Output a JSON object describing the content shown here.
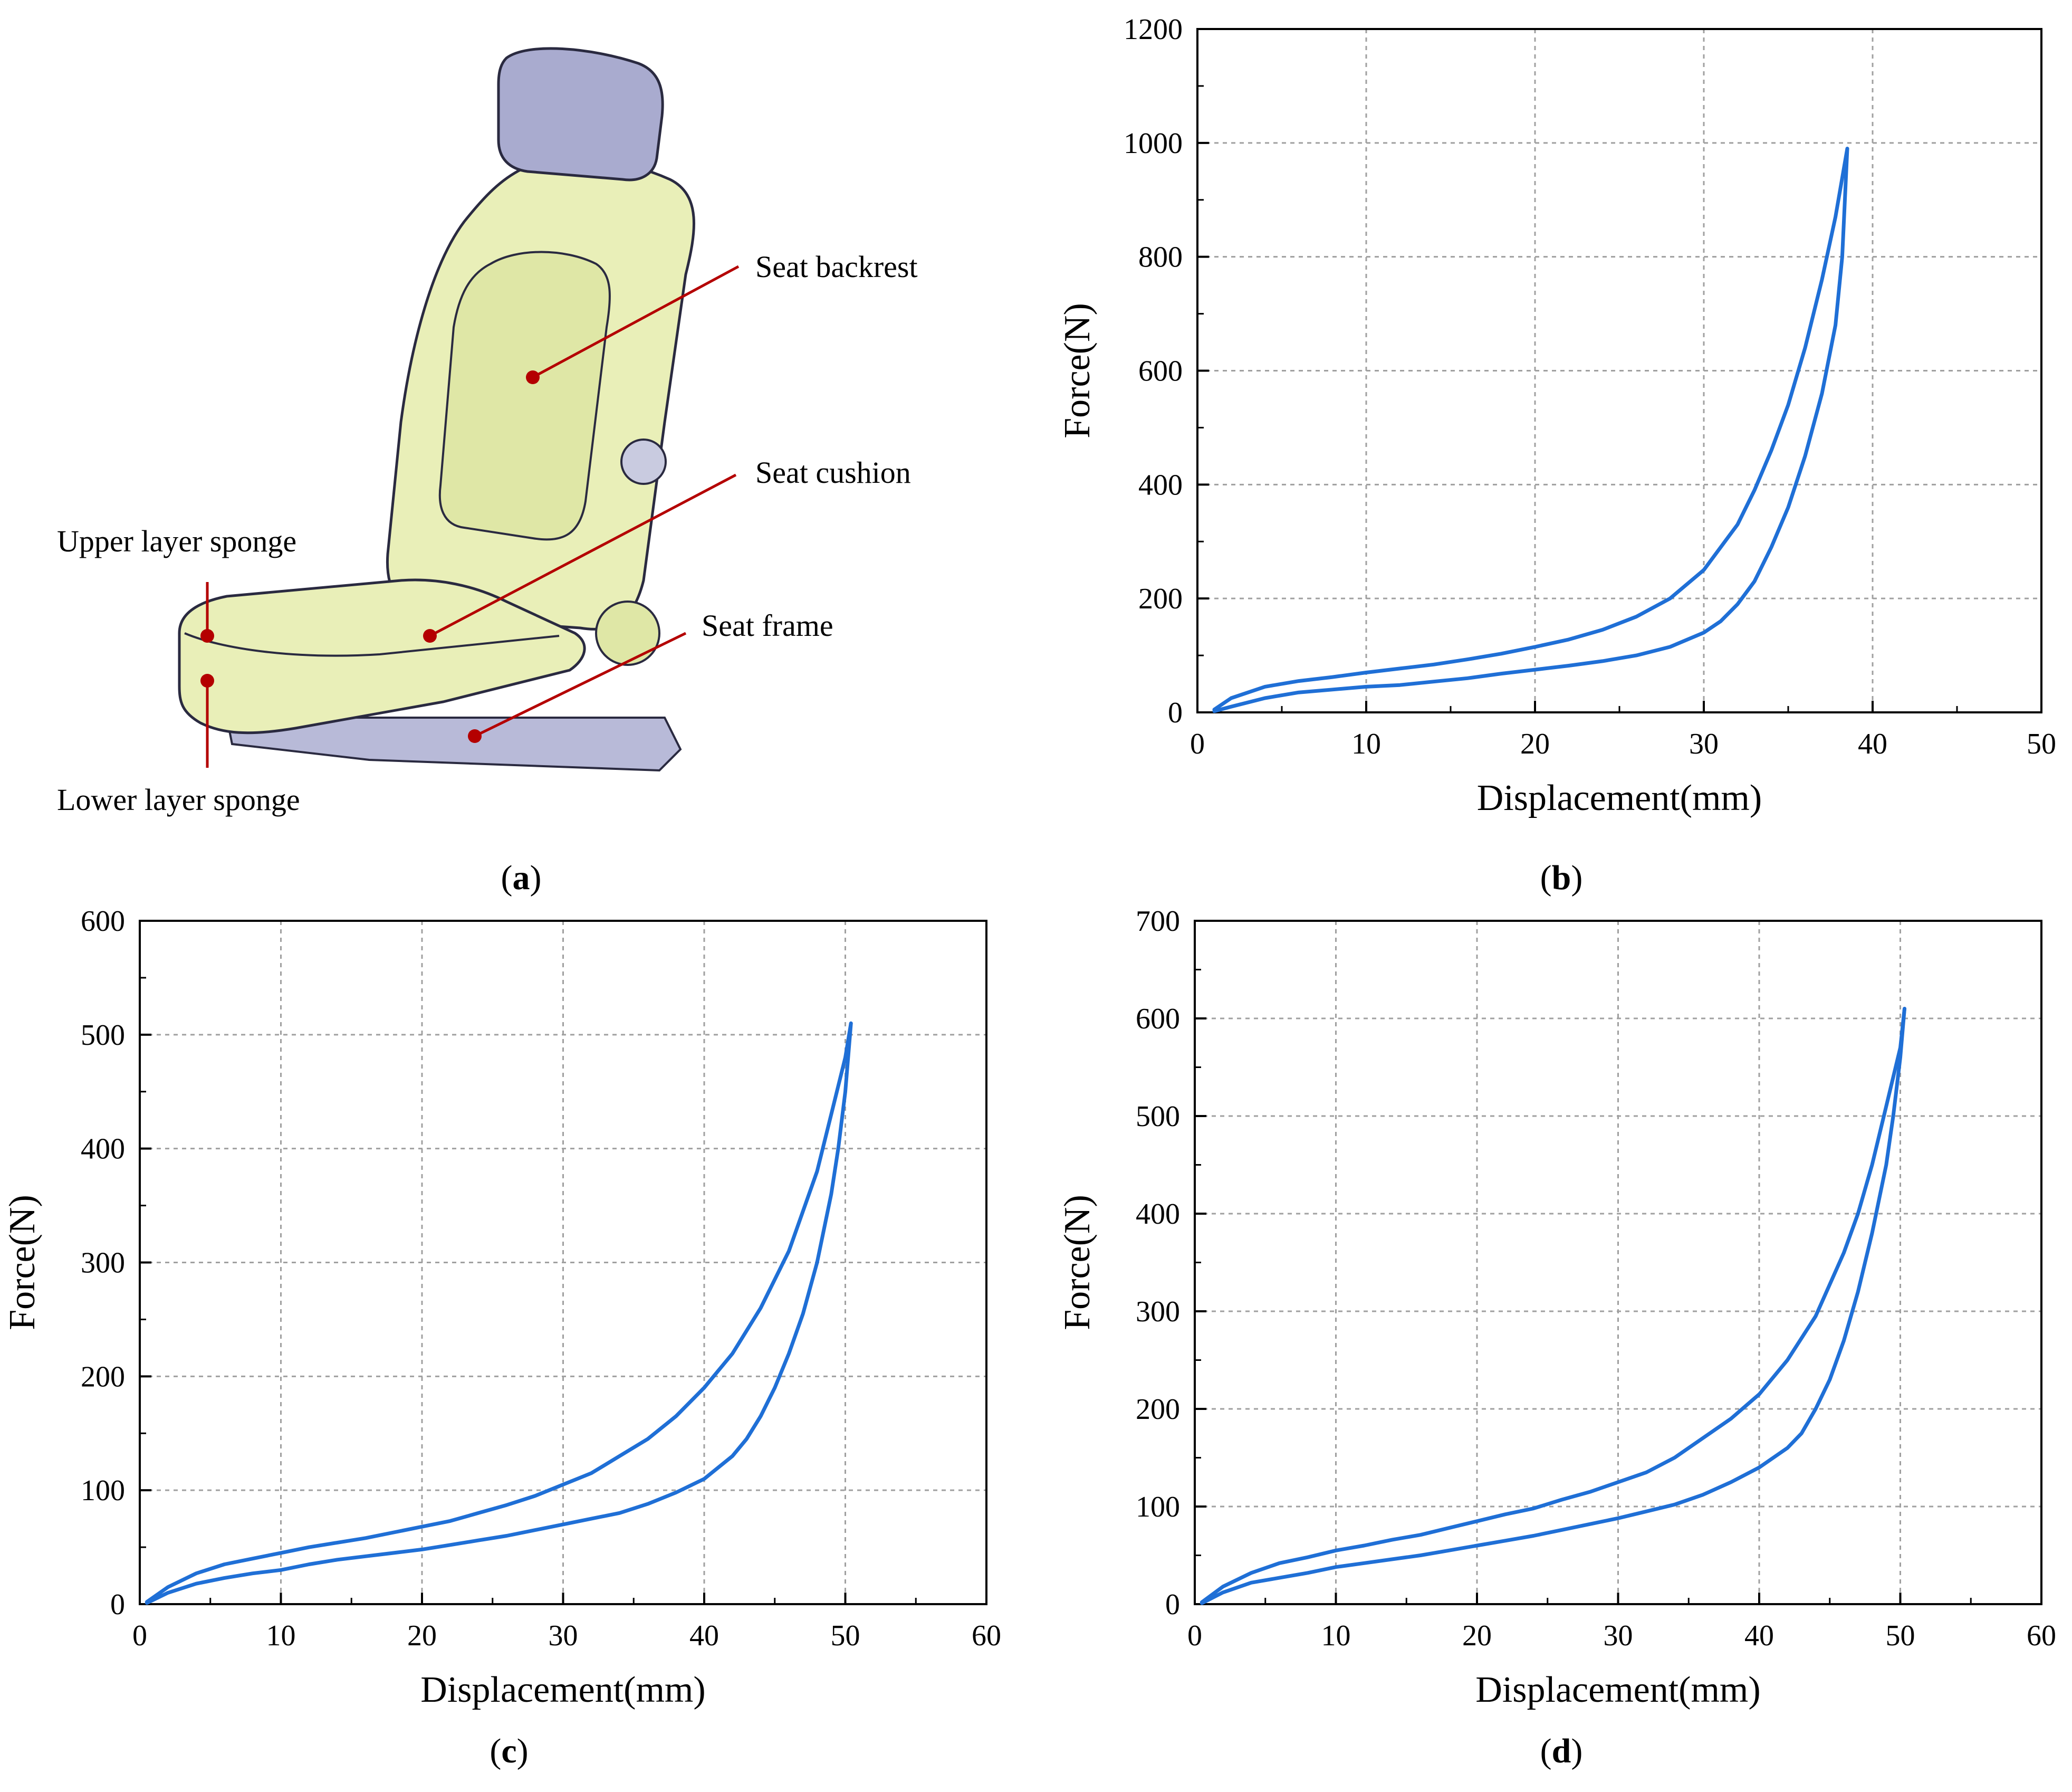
{
  "panel_a": {
    "caption_letter": "a",
    "labels": {
      "backrest": "Seat backrest",
      "cushion": "Seat cushion",
      "upper_sponge": "Upper layer sponge",
      "frame": "Seat frame",
      "lower_sponge": "Lower layer sponge"
    },
    "colors": {
      "seat": "#e9efb8",
      "headrest": "#a9abcf",
      "leader": "#b40000"
    }
  },
  "chart_data": [
    {
      "id": "b",
      "caption_letter": "b",
      "type": "line",
      "xlabel": "Displacement(mm)",
      "ylabel": "Force(N)",
      "xlim": [
        0,
        50
      ],
      "ylim": [
        0,
        1200
      ],
      "xticks": [
        0,
        10,
        20,
        30,
        40,
        50
      ],
      "yticks": [
        0,
        200,
        400,
        600,
        800,
        1000,
        1200
      ],
      "grid": true,
      "series": [
        {
          "x": [
            1,
            2,
            4,
            6,
            8,
            10,
            12,
            14,
            16,
            18,
            20,
            22,
            24,
            26,
            28,
            30,
            32,
            33,
            34,
            35,
            36,
            37,
            37.8,
            38.5
          ],
          "y": [
            5,
            25,
            45,
            55,
            62,
            70,
            77,
            84,
            93,
            103,
            115,
            128,
            145,
            168,
            200,
            250,
            330,
            390,
            460,
            540,
            640,
            760,
            870,
            990
          ]
        },
        {
          "x": [
            38.5,
            38.2,
            37.8,
            37,
            36,
            35,
            34,
            33,
            32,
            31,
            30,
            28,
            26,
            24,
            22,
            20,
            18,
            16,
            14,
            12,
            10,
            8,
            6,
            4,
            2,
            1
          ],
          "y": [
            990,
            800,
            680,
            560,
            450,
            360,
            290,
            230,
            190,
            160,
            140,
            115,
            100,
            90,
            82,
            75,
            68,
            60,
            54,
            48,
            45,
            40,
            35,
            25,
            10,
            2
          ]
        }
      ],
      "color": "#1f6fd6"
    },
    {
      "id": "c",
      "caption_letter": "c",
      "type": "line",
      "xlabel": "Displacement(mm)",
      "ylabel": "Force(N)",
      "xlim": [
        0,
        60
      ],
      "ylim": [
        0,
        600
      ],
      "xticks": [
        0,
        10,
        20,
        30,
        40,
        50,
        60
      ],
      "yticks": [
        0,
        100,
        200,
        300,
        400,
        500,
        600
      ],
      "grid": true,
      "series": [
        {
          "x": [
            0.5,
            2,
            4,
            6,
            8,
            10,
            12,
            14,
            16,
            18,
            20,
            22,
            24,
            26,
            28,
            30,
            32,
            34,
            36,
            38,
            40,
            42,
            44,
            46,
            48,
            49,
            50,
            50.4
          ],
          "y": [
            2,
            15,
            27,
            35,
            40,
            45,
            50,
            54,
            58,
            63,
            68,
            73,
            80,
            87,
            95,
            105,
            115,
            130,
            145,
            165,
            190,
            220,
            260,
            310,
            380,
            430,
            480,
            510
          ]
        },
        {
          "x": [
            50.4,
            50,
            49.5,
            49,
            48,
            47,
            46,
            45,
            44,
            43,
            42,
            40,
            38,
            36,
            34,
            32,
            30,
            28,
            26,
            24,
            22,
            20,
            18,
            16,
            14,
            12,
            10,
            8,
            6,
            4,
            2,
            0.5
          ],
          "y": [
            510,
            450,
            400,
            360,
            300,
            255,
            220,
            190,
            165,
            145,
            130,
            110,
            98,
            88,
            80,
            75,
            70,
            65,
            60,
            56,
            52,
            48,
            45,
            42,
            39,
            35,
            30,
            27,
            23,
            18,
            10,
            1
          ]
        }
      ],
      "color": "#1f6fd6"
    },
    {
      "id": "d",
      "caption_letter": "d",
      "type": "line",
      "xlabel": "Displacement(mm)",
      "ylabel": "Force(N)",
      "xlim": [
        0,
        60
      ],
      "ylim": [
        0,
        700
      ],
      "xticks": [
        0,
        10,
        20,
        30,
        40,
        50,
        60
      ],
      "yticks": [
        0,
        100,
        200,
        300,
        400,
        500,
        600,
        700
      ],
      "grid": true,
      "series": [
        {
          "x": [
            0.5,
            2,
            4,
            6,
            8,
            10,
            12,
            14,
            16,
            18,
            20,
            22,
            24,
            26,
            28,
            30,
            32,
            34,
            36,
            38,
            40,
            42,
            44,
            46,
            47,
            48,
            49,
            50,
            50.3
          ],
          "y": [
            2,
            18,
            32,
            42,
            48,
            55,
            60,
            66,
            71,
            78,
            85,
            92,
            98,
            107,
            115,
            125,
            135,
            150,
            170,
            190,
            215,
            250,
            295,
            360,
            400,
            450,
            510,
            570,
            610
          ]
        },
        {
          "x": [
            50.3,
            50,
            49.5,
            49,
            48,
            47,
            46,
            45,
            44,
            43,
            42,
            40,
            38,
            36,
            34,
            32,
            30,
            28,
            26,
            24,
            22,
            20,
            18,
            16,
            14,
            12,
            10,
            8,
            6,
            4,
            2,
            0.5
          ],
          "y": [
            610,
            560,
            500,
            450,
            380,
            320,
            270,
            230,
            200,
            175,
            160,
            140,
            125,
            112,
            102,
            95,
            88,
            82,
            76,
            70,
            65,
            60,
            55,
            50,
            46,
            42,
            38,
            32,
            27,
            22,
            12,
            1
          ]
        }
      ],
      "color": "#1f6fd6"
    }
  ]
}
